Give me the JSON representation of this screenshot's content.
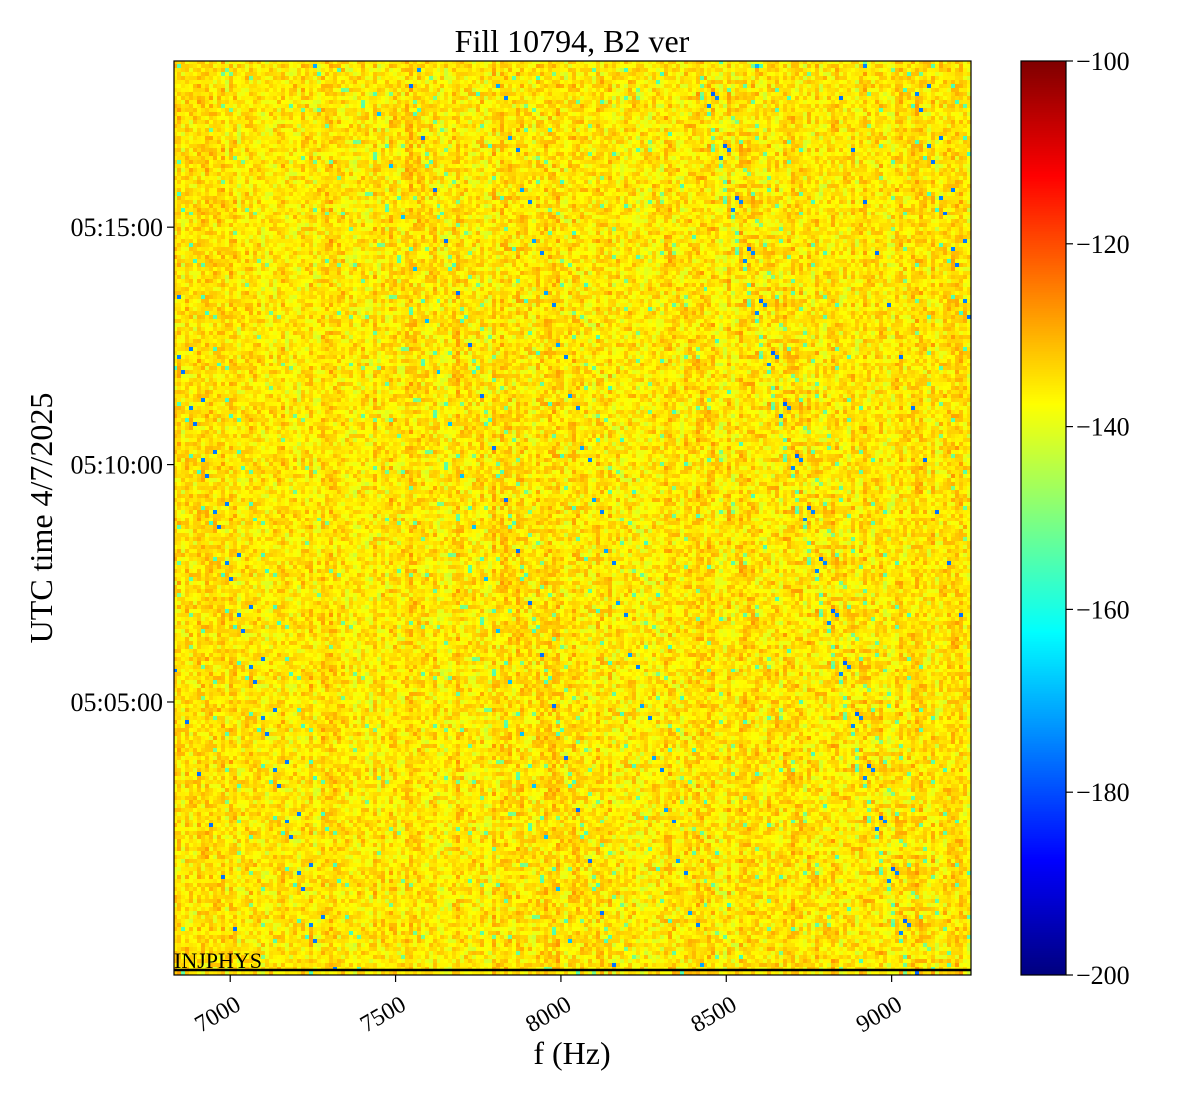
{
  "chart_data": {
    "type": "heatmap",
    "title": "Fill 10794, B2 ver",
    "xlabel": "f (Hz)",
    "ylabel": "UTC time 4/7/2025",
    "xlim": [
      6830,
      9240
    ],
    "x_ticks": [
      7000,
      7500,
      8000,
      8500,
      9000
    ],
    "x_tick_labels": [
      "7000",
      "7500",
      "8000",
      "8500",
      "9000"
    ],
    "y_range_seconds_after_05_00_00": [
      -45,
      1110
    ],
    "y_ticks_seconds": [
      300,
      600,
      900
    ],
    "y_tick_labels": [
      "05:05:00",
      "05:10:00",
      "05:15:00"
    ],
    "colorbar": {
      "colormap": "jet",
      "range": [
        -200,
        -100
      ],
      "ticks": [
        -200,
        -180,
        -160,
        -140,
        -120,
        -100
      ],
      "tick_labels": [
        "−200",
        "−180",
        "−160",
        "−140",
        "−120",
        "−100"
      ]
    },
    "typical_value_range": [
      -150,
      -128
    ],
    "annotation": {
      "text": "INJPHYS",
      "line_color": "#000000"
    },
    "colors": {
      "frame": "#000000"
    }
  }
}
